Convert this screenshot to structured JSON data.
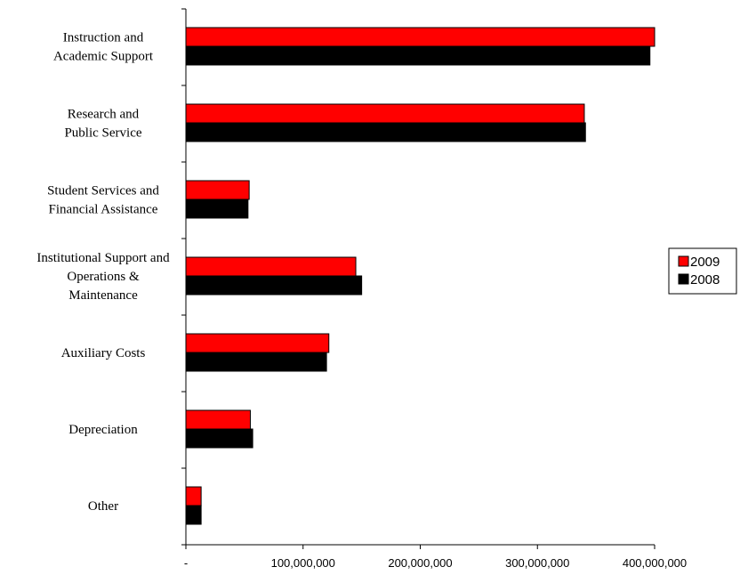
{
  "chart_data": {
    "type": "bar",
    "orientation": "horizontal",
    "title": "",
    "xlabel": "",
    "ylabel": "",
    "categories": [
      [
        "Instruction and",
        "Academic Support"
      ],
      [
        "Research and",
        "Public Service"
      ],
      [
        "Student Services and",
        "Financial Assistance"
      ],
      [
        "Institutional Support and",
        "Operations &",
        "Maintenance"
      ],
      [
        "Auxiliary Costs"
      ],
      [
        "Depreciation"
      ],
      [
        "Other"
      ]
    ],
    "series": [
      {
        "name": "2009",
        "color": "#ff0000",
        "values": [
          400000000,
          340000000,
          54000000,
          145000000,
          122000000,
          55000000,
          13000000
        ]
      },
      {
        "name": "2008",
        "color": "#000000",
        "values": [
          396000000,
          341000000,
          53000000,
          150000000,
          120000000,
          57000000,
          13000000
        ]
      }
    ],
    "xlim": [
      0,
      400000000
    ],
    "xticks": [
      0,
      100000000,
      200000000,
      300000000,
      400000000
    ],
    "xtick_labels": [
      "-",
      "100,000,000",
      "200,000,000",
      "300,000,000",
      "400,000,000"
    ],
    "grid": false,
    "legend": {
      "position": "right",
      "entries": [
        "2009",
        "2008"
      ]
    }
  }
}
